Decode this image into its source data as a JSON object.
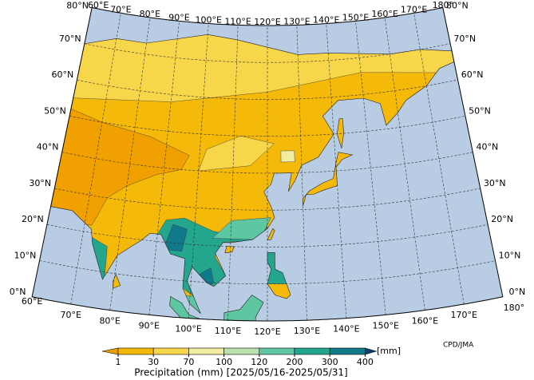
{
  "map": {
    "lat_labels": [
      "0°N",
      "10°N",
      "20°N",
      "30°N",
      "40°N",
      "50°N",
      "60°N",
      "70°N",
      "80°N"
    ],
    "lon_labels": [
      "60°E",
      "70°E",
      "80°E",
      "90°E",
      "100°E",
      "110°E",
      "120°E",
      "130°E",
      "140°E",
      "150°E",
      "160°E",
      "170°E",
      "180°"
    ],
    "credit": "CPD/JMA"
  },
  "colorbar": {
    "title": "Precipitation (mm) [2025/05/16-2025/05/31]",
    "unit": "[mm]",
    "ticks": [
      1,
      30,
      70,
      100,
      120,
      200,
      300,
      400
    ],
    "colors": [
      "#f0a000",
      "#f5b90a",
      "#f8d64a",
      "#f0eda0",
      "#b9e3ae",
      "#5fc6a2",
      "#23a58e",
      "#10798a",
      "#0b3f73"
    ]
  }
}
